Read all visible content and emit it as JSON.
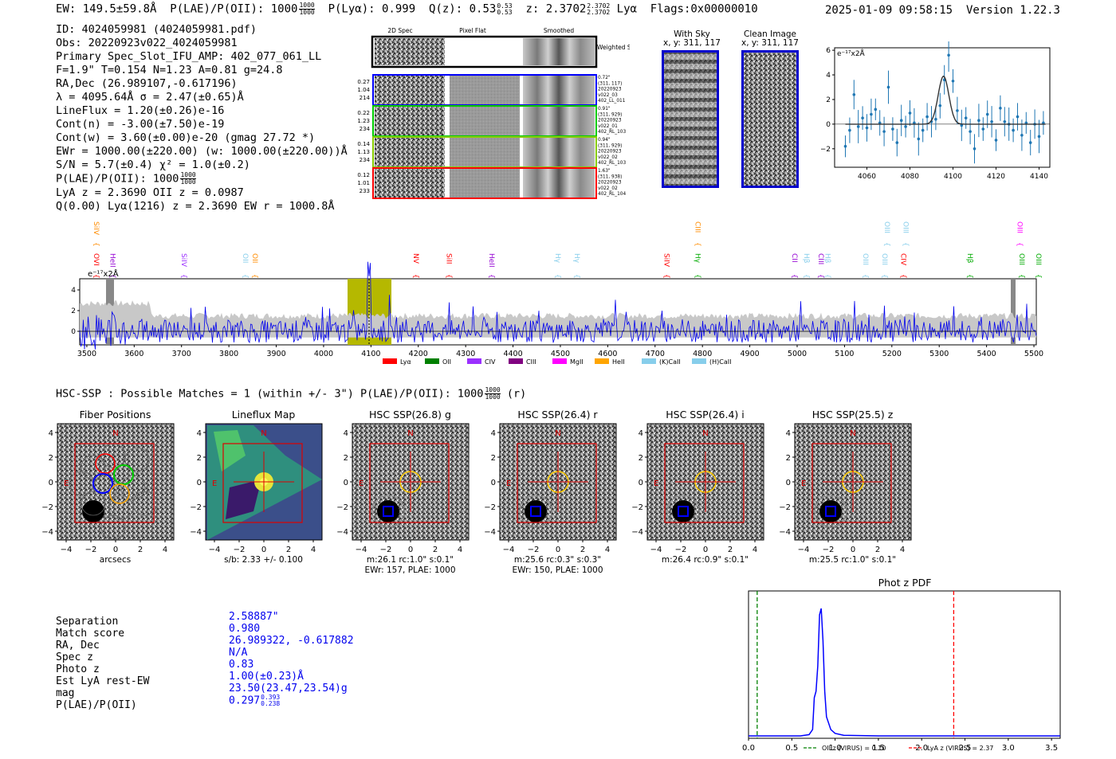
{
  "header": {
    "ew_text": "EW: 149.5±59.8Å",
    "plae_label": "P(LAE)/P(OII): 1000",
    "plae_sup": "1000",
    "plae_sub": "1000",
    "plya_text": "P(Lyα): 0.999",
    "qz_label": "Q(z): 0.53",
    "qz_sup": "0.53",
    "qz_sub": "0.53",
    "z_label": "z: 2.3702",
    "z_sup": "2.3702",
    "z_sub": "2.3702",
    "z_line": "Lyα",
    "flags": "Flags:0x00000010",
    "timestamp": "2025-01-09 09:58:15",
    "version": "Version 1.22.3"
  },
  "info": {
    "lines": [
      "ID: 4024059981 (4024059981.pdf)",
      "Obs: 20220923v022_4024059981",
      "Primary Spec_Slot_IFU_AMP: 402_077_061_LL",
      "F=1.9\"  T=0.154  N=1.23  A=0.81  g=24.8",
      "RA,Dec (26.989107,-0.617196)",
      "λ = 4095.64Å  σ = 2.47(±0.65)Å",
      "LineFlux = 1.20(±0.26)e-16",
      "Cont(n) = -3.00(±7.50)e-19",
      "Cont(w) = 3.60(±0.00)e-20 (gmag 27.72 *)",
      "EWr = 1000.00(±220.00) (w: 1000.00(±220.00))Å",
      "S/N = 5.7(±0.4)  χ² = 1.0(±0.2)"
    ],
    "plae_line": "P(LAE)/P(OII): 1000",
    "plae_sup": "1000",
    "plae_sub": "1000",
    "lya_line": "LyA z = 2.3690  OII z = 0.0987",
    "q_line": "Q(0.00) Lyα(1216) z = 2.3690  EW r = 1000.8Å"
  },
  "spec2d": {
    "col_headers": [
      "2D Spec",
      "Pixel Flat",
      "Smoothed"
    ],
    "weighted_label": "Weighted Sum",
    "rows": [
      {
        "left": [
          "0.27",
          "1.04",
          "214"
        ],
        "right": [
          "0.72\"",
          "(311, 117)",
          "20220923",
          "v022_03",
          "402_LL_011"
        ],
        "color": "#0000ff"
      },
      {
        "left": [
          "0.22",
          "1.23",
          "234"
        ],
        "right": [
          "0.91\"",
          "(311, 929)",
          "20220923",
          "v022_01",
          "402_RL_103"
        ],
        "color": "#00cc00"
      },
      {
        "left": [
          "0.14",
          "1.13",
          "234"
        ],
        "right": [
          "0.94\"",
          "(311, 929)",
          "20220923",
          "v022_02",
          "402_RL_103"
        ],
        "color": "#88cc00"
      },
      {
        "left": [
          "0.12",
          "1.01",
          "233"
        ],
        "right": [
          "1.63\"",
          "(311, 938)",
          "20220923",
          "v022_02",
          "402_RL_104"
        ],
        "color": "#ff0000"
      }
    ]
  },
  "sky": {
    "with_sky_title": "With Sky",
    "with_sky_xy": "x, y: 311, 117",
    "clean_title": "Clean Image",
    "clean_xy": "x, y: 311, 117"
  },
  "line_fit": {
    "unit_label": "e⁻¹⁷x2Å",
    "x_ticks": [
      "4060",
      "4080",
      "4100",
      "4120",
      "4140"
    ],
    "y_ticks": [
      "6",
      "4",
      "2",
      "0",
      "−2"
    ]
  },
  "spectrum": {
    "unit_label": "e⁻¹⁷x2Å",
    "x_ticks": [
      "3500",
      "3600",
      "3700",
      "3800",
      "3900",
      "4000",
      "4100",
      "4200",
      "4300",
      "4400",
      "4500",
      "4600",
      "4700",
      "4800",
      "4900",
      "5000",
      "5100",
      "5200",
      "5300",
      "5400",
      "5500"
    ],
    "y_ticks": [
      "4",
      "2",
      "0"
    ],
    "line_labels": [
      {
        "text": "OVI",
        "color": "#ff0000",
        "wl": 3510
      },
      {
        "text": "SiIV",
        "color": "#ff8c00",
        "wl": 3510,
        "high": true
      },
      {
        "text": "HeII",
        "color": "#9400d3",
        "wl": 3545
      },
      {
        "text": "SiIV",
        "color": "#9b30ff",
        "wl": 3695
      },
      {
        "text": "OII",
        "color": "#87ceeb",
        "wl": 3825
      },
      {
        "text": "OII",
        "color": "#ff8c00",
        "wl": 3845
      },
      {
        "text": "NV",
        "color": "#ff0000",
        "wl": 4185
      },
      {
        "text": "SiII",
        "color": "#ff0000",
        "wl": 4255
      },
      {
        "text": "HeII",
        "color": "#9400d3",
        "wl": 4345
      },
      {
        "text": "Hγ",
        "color": "#87ceeb",
        "wl": 4485
      },
      {
        "text": "Hγ",
        "color": "#87ceeb",
        "wl": 4525
      },
      {
        "text": "SiIV",
        "color": "#ff0000",
        "wl": 4715
      },
      {
        "text": "CIII",
        "color": "#ff8c00",
        "wl": 4780,
        "high": true
      },
      {
        "text": "Hγ",
        "color": "#00aa00",
        "wl": 4780
      },
      {
        "text": "CII",
        "color": "#9400d3",
        "wl": 4985
      },
      {
        "text": "Hβ",
        "color": "#87ceeb",
        "wl": 5010
      },
      {
        "text": "CIII",
        "color": "#9400d3",
        "wl": 5040
      },
      {
        "text": "Hβ",
        "color": "#87ceeb",
        "wl": 5055
      },
      {
        "text": "OIII",
        "color": "#87ceeb",
        "wl": 5135
      },
      {
        "text": "OIII",
        "color": "#87ceeb",
        "wl": 5180,
        "high": true
      },
      {
        "text": "OIII",
        "color": "#87ceeb",
        "wl": 5175
      },
      {
        "text": "OIII",
        "color": "#87ceeb",
        "wl": 5220,
        "high": true
      },
      {
        "text": "CIV",
        "color": "#ff0000",
        "wl": 5215
      },
      {
        "text": "Hβ",
        "color": "#00aa00",
        "wl": 5355
      },
      {
        "text": "OIII",
        "color": "#ff00ff",
        "wl": 5460,
        "high": true
      },
      {
        "text": "OIII",
        "color": "#00aa00",
        "wl": 5465
      },
      {
        "text": "OIII",
        "color": "#00aa00",
        "wl": 5500
      }
    ],
    "legend": [
      {
        "label": "Lyα",
        "color": "#ff0000"
      },
      {
        "label": "OII",
        "color": "#008000"
      },
      {
        "label": "CIV",
        "color": "#9b30ff"
      },
      {
        "label": "CIII",
        "color": "#800080"
      },
      {
        "label": "MgII",
        "color": "#ff00ff"
      },
      {
        "label": "HeII",
        "color": "#ffa500"
      },
      {
        "label": "(K)CaII",
        "color": "#87ceeb"
      },
      {
        "label": "(H)CaII",
        "color": "#87ceeb"
      }
    ]
  },
  "hsc": {
    "heading": "HSC-SSP : Possible Matches = 1 (within +/- 3\")  P(LAE)/P(OII): 1000",
    "heading_sup": "1000",
    "heading_sub": "1000",
    "heading_suffix": "(r)",
    "panels": [
      {
        "title": "Fiber Positions",
        "cap1": "arcsecs",
        "cap2": ""
      },
      {
        "title": "Lineflux Map",
        "cap1": "s/b: 2.33 +/- 0.100",
        "cap2": ""
      },
      {
        "title": "HSC SSP(26.8) g",
        "cap1": "m:26.1 rc:1.0\"  s:0.1\"",
        "cap2": "EWr: 157, PLAE: 1000"
      },
      {
        "title": "HSC SSP(26.4) r",
        "cap1": "m:25.6  rc:0.3\"  s:0.3\"",
        "cap2": "EWr: 150, PLAE: 1000"
      },
      {
        "title": "HSC SSP(26.4) i",
        "cap1": "m:26.4 rc:0.9\"  s:0.1\"",
        "cap2": ""
      },
      {
        "title": "HSC SSP(25.5) z",
        "cap1": "m:25.5 rc:1.0\"  s:0.1\"",
        "cap2": ""
      }
    ],
    "axis_ticks": [
      "4",
      "2",
      "0",
      "−2",
      "−4"
    ],
    "x_axis_ticks": [
      "−4",
      "−2",
      "0",
      "2",
      "4"
    ],
    "north": "N",
    "east": "E"
  },
  "match_table": {
    "labels": [
      "Separation",
      "Match score",
      "RA, Dec",
      "Spec z",
      "Photo z",
      "Est LyA rest-EW",
      "mag",
      "P(LAE)/P(OII)"
    ],
    "values": [
      "2.58887\"",
      "0.980",
      "26.989322, -0.617882",
      "N/A",
      "0.83",
      "1.00(±0.23)Å",
      "23.50(23.47,23.54)g",
      "0.297"
    ],
    "plae_sup": "0.393",
    "plae_sub": "0.238"
  },
  "chart_data": [
    {
      "type": "line",
      "title": "Phot z PDF",
      "xlabel": "",
      "ylabel": "",
      "xlim": [
        0.0,
        3.6
      ],
      "x_ticks": [
        "0.0",
        "0.5",
        "1.0",
        "1.5",
        "2.0",
        "2.5",
        "3.0",
        "3.5"
      ],
      "series": [
        {
          "name": "PDF",
          "color": "#0000ff",
          "x": [
            0.0,
            0.6,
            0.7,
            0.74,
            0.76,
            0.78,
            0.8,
            0.82,
            0.84,
            0.86,
            0.88,
            0.9,
            0.95,
            1.0,
            1.1,
            1.5,
            2.0,
            3.0,
            3.6
          ],
          "y": [
            0.0,
            0.0,
            0.01,
            0.05,
            0.3,
            0.35,
            0.55,
            0.95,
            1.0,
            0.75,
            0.35,
            0.15,
            0.05,
            0.02,
            0.005,
            0.0,
            0.0,
            0.0,
            0.0
          ]
        }
      ],
      "vlines": [
        {
          "name": "OII z (VIRUS) = 0.10",
          "x": 0.1,
          "color": "#008000"
        },
        {
          "name": "LyA z (VIRUS) = 2.37",
          "x": 2.37,
          "color": "#ff0000"
        }
      ]
    },
    {
      "type": "scatter",
      "title": "Line fit",
      "xlabel": "",
      "ylabel": "e⁻¹⁷x2Å",
      "xlim": [
        4045,
        4145
      ],
      "ylim": [
        -3.5,
        6.2
      ],
      "series": [
        {
          "name": "data",
          "color": "#1f77b4",
          "x": [
            4050,
            4052,
            4054,
            4056,
            4058,
            4060,
            4062,
            4064,
            4066,
            4068,
            4070,
            4072,
            4074,
            4076,
            4078,
            4080,
            4082,
            4084,
            4086,
            4088,
            4090,
            4092,
            4094,
            4096,
            4098,
            4100,
            4102,
            4104,
            4106,
            4108,
            4110,
            4112,
            4114,
            4116,
            4118,
            4120,
            4122,
            4124,
            4126,
            4128,
            4130,
            4132,
            4134,
            4136,
            4138,
            4140,
            4142
          ],
          "y": [
            -1.8,
            -0.5,
            2.4,
            -0.2,
            0.5,
            -0.3,
            0.8,
            1.2,
            0.1,
            -0.6,
            3.0,
            -0.4,
            -1.5,
            0.3,
            -0.2,
            0.9,
            0.1,
            -1.2,
            -0.5,
            0.6,
            0.2,
            0.4,
            1.5,
            3.6,
            5.6,
            3.5,
            1.1,
            -0.1,
            0.5,
            -0.6,
            -2.0,
            0.3,
            -0.4,
            0.8,
            0.2,
            -1.3,
            1.3,
            0.2,
            0.0,
            -0.5,
            0.6,
            -0.9,
            0.1,
            -1.5,
            0.0,
            -1.0,
            0.1
          ],
          "err": 1.1
        },
        {
          "name": "fit",
          "color": "#333333",
          "center": 4095.6,
          "sigma": 2.47,
          "amp": 3.9
        }
      ]
    }
  ]
}
